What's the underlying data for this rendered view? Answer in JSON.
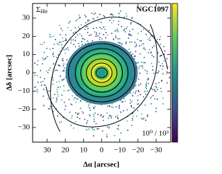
{
  "chart_data": {
    "type": "image",
    "xlabel": "Δα [arcsec]",
    "ylabel": "Δδ [arcsec]",
    "quantity": {
      "symbol": "Σ",
      "subscript": "Hα"
    },
    "object": "NGC1097",
    "colorbar_range": "10⁰ / 10³",
    "cmap": "viridis",
    "xlim": [
      38,
      -38
    ],
    "ylim": [
      -38,
      38
    ],
    "xticks": [
      30,
      20,
      10,
      0,
      {
        "value": -10,
        "label": "−10"
      },
      {
        "value": -20,
        "label": "−20"
      },
      {
        "value": -30,
        "label": "−30"
      }
    ],
    "yticks": [
      30,
      20,
      10,
      0,
      {
        "value": -10,
        "label": "−10"
      },
      {
        "value": -20,
        "label": "−20"
      },
      {
        "value": -30,
        "label": "−30"
      }
    ]
  }
}
